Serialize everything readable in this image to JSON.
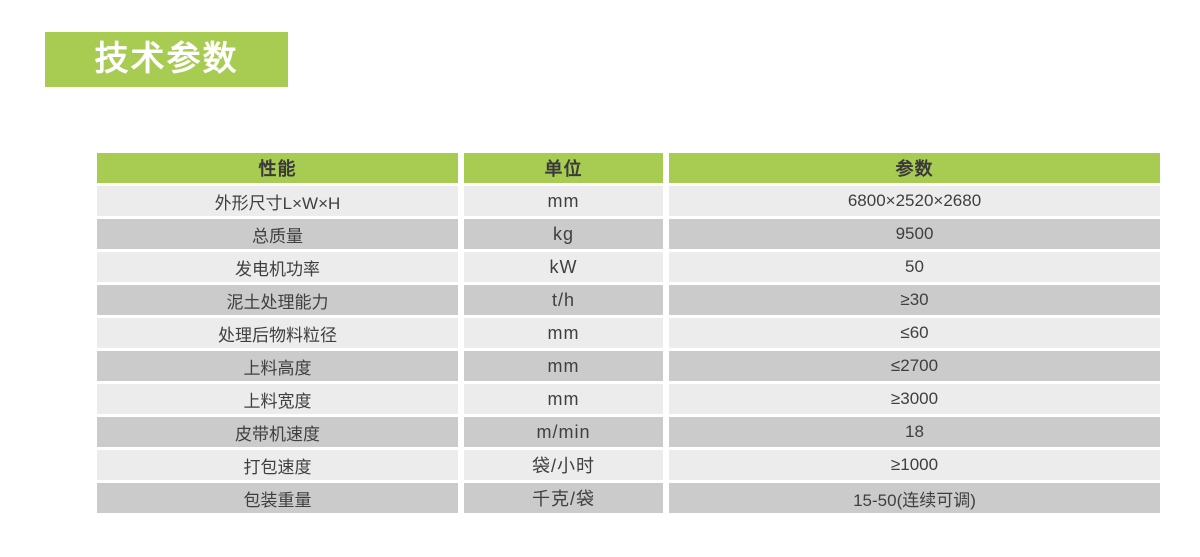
{
  "page_title_badge": "技术参数",
  "colors": {
    "accent_green": "#a8cb52",
    "badge_text": "#ffffff",
    "header_text": "#3a3a3a",
    "cell_text": "#3f3f3f",
    "row_light": "#ececec",
    "row_dark": "#cbcbcb"
  },
  "chart_data": {
    "type": "table",
    "title": "技术参数",
    "columns": [
      "性能",
      "单位",
      "参数"
    ],
    "rows": [
      [
        "外形尺寸L×W×H",
        "mm",
        "6800×2520×2680"
      ],
      [
        "总质量",
        "kg",
        "9500"
      ],
      [
        "发电机功率",
        "kW",
        "50"
      ],
      [
        "泥土处理能力",
        "t/h",
        "≥30"
      ],
      [
        "处理后物料粒径",
        "mm",
        "≤60"
      ],
      [
        "上料高度",
        "mm",
        "≤2700"
      ],
      [
        "上料宽度",
        "mm",
        "≥3000"
      ],
      [
        "皮带机速度",
        "m/min",
        "18"
      ],
      [
        "打包速度",
        "袋/小时",
        "≥1000"
      ],
      [
        "包装重量",
        "千克/袋",
        "15-50(连续可调)"
      ]
    ],
    "layout": {
      "legend": false,
      "grid": false,
      "row_striping": "alternating light/dark gray",
      "header_fill": "green"
    }
  }
}
